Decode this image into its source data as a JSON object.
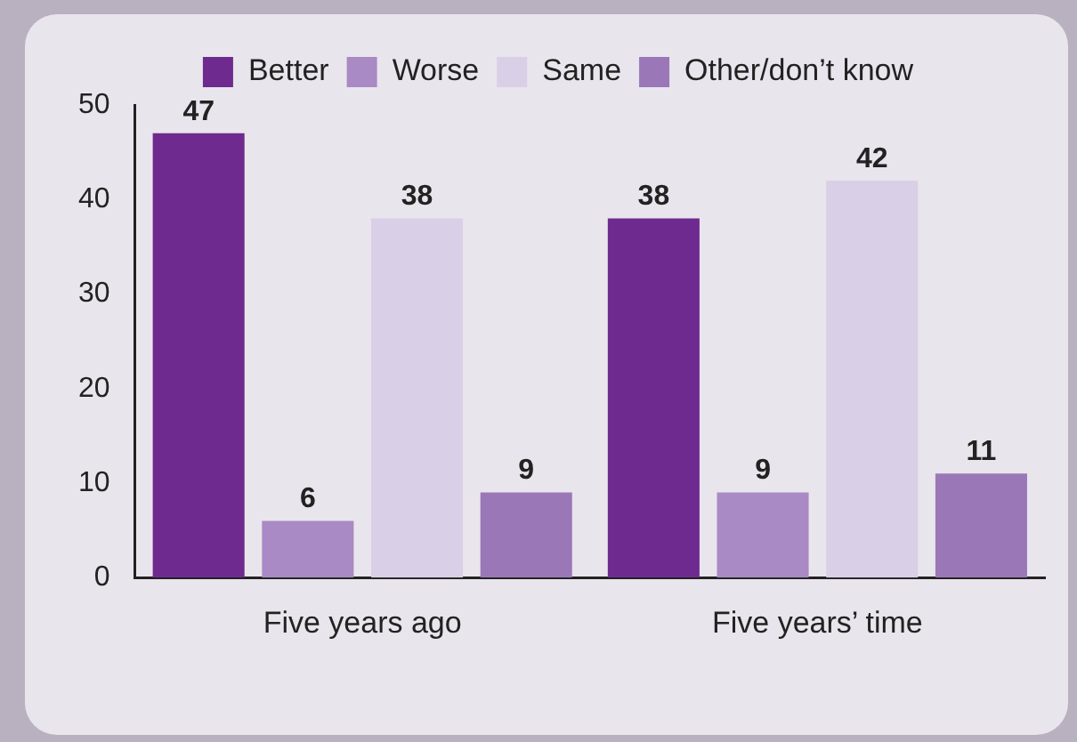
{
  "chart_data": {
    "type": "bar",
    "categories": [
      "Five years ago",
      "Five years’ time"
    ],
    "series": [
      {
        "name": "Better",
        "color": "#6e2a8e",
        "values": [
          47,
          38
        ]
      },
      {
        "name": "Worse",
        "color": "#a98ac4",
        "values": [
          6,
          9
        ]
      },
      {
        "name": "Same",
        "color": "#d9cfe6",
        "values": [
          38,
          42
        ]
      },
      {
        "name": "Other/don’t know",
        "color": "#9a78b8",
        "values": [
          9,
          11
        ]
      }
    ],
    "ylim": [
      0,
      50
    ],
    "yticks": [
      0,
      10,
      20,
      30,
      40,
      50
    ],
    "grid": false,
    "legend": "top",
    "data_labels": true
  }
}
